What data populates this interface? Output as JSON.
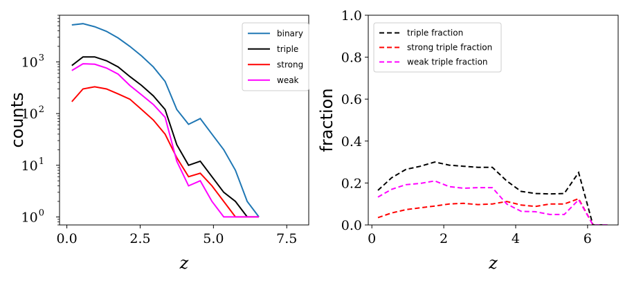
{
  "chart_data": [
    {
      "type": "line",
      "yscale": "log",
      "title": "",
      "xlabel": "z",
      "ylabel": "counts",
      "xlim": [
        -0.25,
        8.25
      ],
      "ylim": [
        0.7,
        8000
      ],
      "xticks": [
        0.0,
        2.5,
        5.0,
        7.5
      ],
      "xtick_labels": [
        "0.0",
        "2.5",
        "5.0",
        "7.5"
      ],
      "yticks": [
        1,
        10,
        100,
        1000
      ],
      "ytick_bases": [
        "10",
        "10",
        "10",
        "10"
      ],
      "ytick_exps": [
        "0",
        "1",
        "2",
        "3"
      ],
      "grid": false,
      "legend_position": "top-right",
      "x": [
        0.17,
        0.55,
        0.95,
        1.35,
        1.75,
        2.15,
        2.55,
        2.95,
        3.35,
        3.75,
        4.15,
        4.55,
        4.95,
        5.35,
        5.75,
        6.15,
        6.55
      ],
      "series": [
        {
          "name": "binary",
          "color": "#1f77b4",
          "dash": "",
          "values": [
            5200,
            5500,
            4800,
            3900,
            2900,
            2000,
            1300,
            800,
            420,
            120,
            62,
            80,
            40,
            20,
            8,
            2,
            1
          ]
        },
        {
          "name": "triple",
          "color": "#000000",
          "dash": "",
          "values": [
            850,
            1250,
            1250,
            1050,
            800,
            520,
            350,
            220,
            120,
            25,
            10,
            12,
            6,
            3,
            2,
            1,
            1
          ]
        },
        {
          "name": "strong",
          "color": "#ff0000",
          "dash": "",
          "values": [
            170,
            300,
            330,
            300,
            240,
            190,
            120,
            75,
            40,
            14,
            6,
            7,
            4,
            2,
            1,
            1,
            1
          ]
        },
        {
          "name": "weak",
          "color": "#ff00ff",
          "dash": "",
          "values": [
            680,
            920,
            900,
            760,
            580,
            350,
            230,
            150,
            85,
            12,
            4,
            5,
            2,
            1,
            1,
            1,
            1
          ]
        }
      ]
    },
    {
      "type": "line",
      "yscale": "linear",
      "title": "",
      "xlabel": "z",
      "ylabel": "fraction",
      "xlim": [
        -0.1,
        6.85
      ],
      "ylim": [
        0.0,
        1.0
      ],
      "xticks": [
        0,
        2,
        4,
        6
      ],
      "xtick_labels": [
        "0",
        "2",
        "4",
        "6"
      ],
      "yticks": [
        0.0,
        0.2,
        0.4,
        0.6,
        0.8,
        1.0
      ],
      "ytick_labels": [
        "0.0",
        "0.2",
        "0.4",
        "0.6",
        "0.8",
        "1.0"
      ],
      "grid": false,
      "legend_position": "top-left",
      "x": [
        0.17,
        0.55,
        0.95,
        1.35,
        1.75,
        2.15,
        2.55,
        2.95,
        3.35,
        3.75,
        4.15,
        4.55,
        4.95,
        5.35,
        5.75,
        6.15,
        6.55
      ],
      "series": [
        {
          "name": "triple fraction",
          "color": "#000000",
          "dash": "7,4",
          "values": [
            0.165,
            0.225,
            0.265,
            0.28,
            0.3,
            0.285,
            0.28,
            0.275,
            0.275,
            0.21,
            0.16,
            0.15,
            0.148,
            0.15,
            0.25,
            0.0,
            0.0
          ]
        },
        {
          "name": "strong triple fraction",
          "color": "#ff0000",
          "dash": "7,4",
          "values": [
            0.035,
            0.057,
            0.073,
            0.082,
            0.09,
            0.1,
            0.103,
            0.097,
            0.1,
            0.112,
            0.095,
            0.088,
            0.1,
            0.1,
            0.125,
            0.0,
            0.0
          ]
        },
        {
          "name": "weak triple fraction",
          "color": "#ff00ff",
          "dash": "7,4",
          "values": [
            0.133,
            0.17,
            0.192,
            0.198,
            0.21,
            0.183,
            0.175,
            0.178,
            0.178,
            0.1,
            0.065,
            0.063,
            0.05,
            0.05,
            0.12,
            0.0,
            0.0
          ]
        }
      ]
    }
  ]
}
